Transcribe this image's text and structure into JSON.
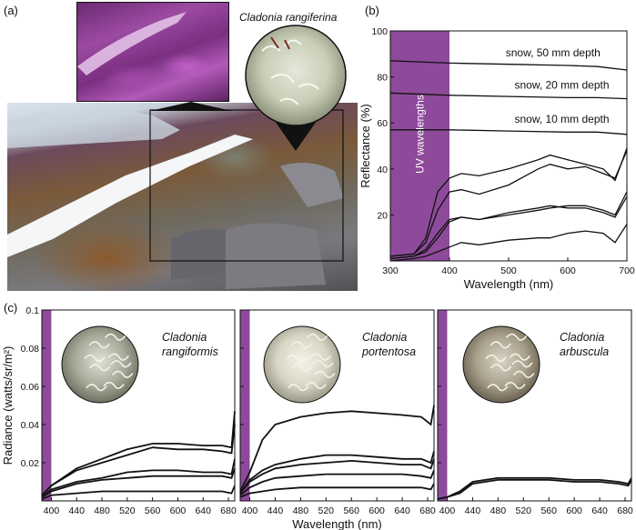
{
  "panel_labels": {
    "a": "(a)",
    "b": "(b)",
    "c": "(c)"
  },
  "panel_a": {
    "species_label": "Cladonia rangiferina",
    "colors": {
      "uv_inset": "#8a2f8f",
      "uv_band": "#8d4a9a"
    }
  },
  "chart_data": [
    {
      "id": "b",
      "type": "line",
      "xlabel": "Wavelength (nm)",
      "ylabel": "Reflectance (%)",
      "xlim": [
        300,
        700
      ],
      "ylim": [
        0,
        100
      ],
      "xticks": [
        300,
        400,
        500,
        600,
        700
      ],
      "yticks": [
        20,
        40,
        60,
        80,
        100
      ],
      "band": {
        "from": 300,
        "to": 400,
        "label": "UV wavelengths",
        "color": "#8d4a9a"
      },
      "annotations": [
        {
          "text": "snow, 50 mm depth",
          "x": 575,
          "y": 89
        },
        {
          "text": "snow, 20 mm depth",
          "x": 590,
          "y": 75
        },
        {
          "text": "snow, 10 mm depth",
          "x": 590,
          "y": 60
        }
      ],
      "series": [
        {
          "x": [
            300,
            400,
            500,
            600,
            650,
            700
          ],
          "y": [
            87,
            86,
            85.5,
            85,
            84.5,
            83
          ]
        },
        {
          "x": [
            300,
            400,
            500,
            600,
            650,
            700
          ],
          "y": [
            73,
            72,
            71.5,
            71,
            71,
            70.5
          ]
        },
        {
          "x": [
            300,
            400,
            500,
            600,
            650,
            700
          ],
          "y": [
            57,
            57,
            56.5,
            56,
            56,
            55
          ]
        },
        {
          "x": [
            300,
            340,
            360,
            380,
            400,
            420,
            450,
            500,
            550,
            570,
            600,
            630,
            660,
            680,
            700
          ],
          "y": [
            2,
            3,
            10,
            30,
            36,
            38,
            37,
            40,
            44,
            46,
            44,
            42,
            40,
            35,
            49
          ]
        },
        {
          "x": [
            300,
            340,
            360,
            380,
            400,
            420,
            450,
            500,
            550,
            570,
            600,
            630,
            660,
            680,
            700
          ],
          "y": [
            2,
            3,
            8,
            22,
            30,
            31,
            29,
            33,
            40,
            42,
            40,
            41,
            38,
            36,
            48
          ]
        },
        {
          "x": [
            300,
            340,
            360,
            380,
            400,
            420,
            450,
            500,
            550,
            570,
            600,
            630,
            660,
            680,
            700
          ],
          "y": [
            1,
            2,
            5,
            12,
            18,
            19,
            18,
            20,
            22,
            23,
            24,
            24,
            22,
            20,
            30
          ]
        },
        {
          "x": [
            300,
            340,
            360,
            380,
            400,
            420,
            450,
            500,
            550,
            570,
            600,
            630,
            660,
            680,
            700
          ],
          "y": [
            1,
            2,
            4,
            10,
            17,
            19,
            18,
            21,
            23,
            24,
            23,
            23,
            21,
            19,
            28
          ]
        },
        {
          "x": [
            300,
            340,
            360,
            380,
            400,
            420,
            450,
            500,
            550,
            570,
            600,
            630,
            660,
            680,
            700
          ],
          "y": [
            0,
            1,
            2,
            4,
            6,
            8,
            7,
            9,
            10,
            10,
            12,
            13,
            12,
            8,
            16
          ]
        }
      ]
    },
    {
      "id": "c1",
      "type": "line",
      "xlabel": "",
      "ylabel": "Radiance (watts/sr/m²)",
      "species_label": "Cladonia rangiformis",
      "xlim": [
        385,
        690
      ],
      "ylim": [
        0,
        0.1
      ],
      "xticks": [
        400,
        440,
        480,
        520,
        560,
        600,
        640,
        680
      ],
      "yticks": [
        0.02,
        0.04,
        0.06,
        0.08,
        0.1
      ],
      "band": {
        "from": 385,
        "to": 400,
        "color": "#8d4a9a"
      },
      "series": [
        {
          "x": [
            385,
            400,
            440,
            480,
            520,
            560,
            600,
            640,
            670,
            685,
            690
          ],
          "y": [
            0.003,
            0.008,
            0.017,
            0.022,
            0.027,
            0.03,
            0.03,
            0.029,
            0.029,
            0.028,
            0.047
          ]
        },
        {
          "x": [
            385,
            400,
            440,
            480,
            520,
            560,
            600,
            640,
            670,
            685,
            690
          ],
          "y": [
            0.003,
            0.008,
            0.016,
            0.02,
            0.024,
            0.028,
            0.027,
            0.027,
            0.026,
            0.025,
            0.04
          ]
        },
        {
          "x": [
            385,
            400,
            440,
            480,
            520,
            560,
            600,
            640,
            670,
            685,
            690
          ],
          "y": [
            0.002,
            0.006,
            0.01,
            0.012,
            0.015,
            0.016,
            0.016,
            0.015,
            0.015,
            0.014,
            0.022
          ]
        },
        {
          "x": [
            385,
            400,
            440,
            480,
            520,
            560,
            600,
            640,
            670,
            685,
            690
          ],
          "y": [
            0.002,
            0.005,
            0.009,
            0.011,
            0.012,
            0.013,
            0.013,
            0.013,
            0.013,
            0.012,
            0.017
          ]
        },
        {
          "x": [
            385,
            400,
            440,
            480,
            520,
            560,
            600,
            640,
            670,
            685,
            690
          ],
          "y": [
            0.001,
            0.003,
            0.004,
            0.005,
            0.005,
            0.005,
            0.005,
            0.005,
            0.005,
            0.004,
            0.008
          ]
        }
      ]
    },
    {
      "id": "c2",
      "type": "line",
      "xlabel": "Wavelength (nm)",
      "ylabel": "",
      "species_label": "Cladonia portentosa",
      "xlim": [
        385,
        690
      ],
      "ylim": [
        0,
        0.1
      ],
      "xticks": [
        400,
        440,
        480,
        520,
        560,
        600,
        640,
        680
      ],
      "yticks": [
        0.02,
        0.04,
        0.06,
        0.08,
        0.1
      ],
      "band": {
        "from": 385,
        "to": 400,
        "color": "#8d4a9a"
      },
      "series": [
        {
          "x": [
            385,
            400,
            420,
            440,
            480,
            520,
            560,
            600,
            640,
            670,
            685,
            690
          ],
          "y": [
            0.005,
            0.015,
            0.032,
            0.04,
            0.044,
            0.046,
            0.047,
            0.046,
            0.045,
            0.044,
            0.04,
            0.05
          ]
        },
        {
          "x": [
            385,
            400,
            420,
            440,
            480,
            520,
            560,
            600,
            640,
            670,
            685,
            690
          ],
          "y": [
            0.004,
            0.011,
            0.016,
            0.019,
            0.022,
            0.024,
            0.024,
            0.023,
            0.022,
            0.022,
            0.02,
            0.026
          ]
        },
        {
          "x": [
            385,
            400,
            420,
            440,
            480,
            520,
            560,
            600,
            640,
            670,
            685,
            690
          ],
          "y": [
            0.004,
            0.01,
            0.014,
            0.017,
            0.019,
            0.02,
            0.021,
            0.02,
            0.019,
            0.019,
            0.017,
            0.022
          ]
        },
        {
          "x": [
            385,
            400,
            420,
            440,
            480,
            520,
            560,
            600,
            640,
            670,
            685,
            690
          ],
          "y": [
            0.003,
            0.007,
            0.01,
            0.012,
            0.013,
            0.014,
            0.014,
            0.014,
            0.014,
            0.013,
            0.012,
            0.016
          ]
        },
        {
          "x": [
            385,
            400,
            420,
            440,
            480,
            520,
            560,
            600,
            640,
            670,
            685,
            690
          ],
          "y": [
            0.002,
            0.004,
            0.005,
            0.006,
            0.007,
            0.007,
            0.007,
            0.007,
            0.007,
            0.007,
            0.006,
            0.009
          ]
        }
      ]
    },
    {
      "id": "c3",
      "type": "line",
      "xlabel": "",
      "ylabel": "",
      "species_label": "Cladonia arbuscula",
      "xlim": [
        385,
        690
      ],
      "ylim": [
        0,
        0.1
      ],
      "xticks": [
        400,
        440,
        480,
        520,
        560,
        600,
        640,
        680
      ],
      "yticks": [
        0.02,
        0.04,
        0.06,
        0.08,
        0.1
      ],
      "band": {
        "from": 385,
        "to": 400,
        "color": "#8d4a9a"
      },
      "series": [
        {
          "x": [
            385,
            400,
            420,
            440,
            480,
            520,
            560,
            600,
            640,
            670,
            685,
            690
          ],
          "y": [
            0.001,
            0.002,
            0.005,
            0.01,
            0.012,
            0.012,
            0.012,
            0.011,
            0.011,
            0.01,
            0.009,
            0.012
          ]
        },
        {
          "x": [
            385,
            400,
            420,
            440,
            480,
            520,
            560,
            600,
            640,
            670,
            685,
            690
          ],
          "y": [
            0.001,
            0.002,
            0.004,
            0.009,
            0.011,
            0.011,
            0.011,
            0.01,
            0.01,
            0.009,
            0.008,
            0.011
          ]
        }
      ]
    }
  ]
}
